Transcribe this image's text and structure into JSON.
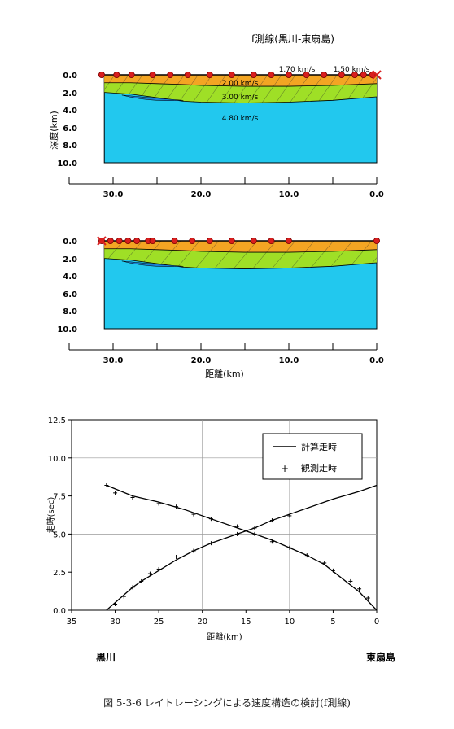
{
  "section1": {
    "title": "f測線(黒川-東扇島)",
    "ylabel": "深度(km)",
    "velocity_labels": [
      "1.70 km/s",
      "1.50 km/s",
      "2.00 km/s",
      "3.00 km/s",
      "4.80 km/s"
    ],
    "x_ticks": [
      "30.0",
      "20.0",
      "10.0",
      "0.0"
    ],
    "y_ticks": [
      "0.0",
      "2.0",
      "4.0",
      "6.0",
      "8.0",
      "10.0"
    ]
  },
  "section2": {
    "xlabel": "距離(km)",
    "x_ticks": [
      "30.0",
      "20.0",
      "10.0",
      "0.0"
    ],
    "y_ticks": [
      "0.0",
      "2.0",
      "4.0",
      "6.0",
      "8.0",
      "10.0"
    ]
  },
  "colors": {
    "layer_orange": "#f3a523",
    "layer_green": "#9fdf26",
    "layer_cyan": "#22c8ee",
    "marker": "#d81e1e"
  },
  "chart_data": [
    {
      "type": "area",
      "name_ref": "section1",
      "xlim": [
        35,
        0
      ],
      "ylim": [
        0,
        10
      ],
      "layers": [
        {
          "velocity": "1.70 km/s",
          "top_km": 0.0
        },
        {
          "velocity": "2.00 km/s",
          "top_km": 0.9
        },
        {
          "velocity": "3.00 km/s",
          "top_km": 1.9
        },
        {
          "velocity": "4.80 km/s",
          "top_km": 2.5
        }
      ],
      "interface_x": [
        31,
        28,
        25,
        22,
        20,
        15,
        10,
        5,
        0
      ],
      "interface_1_depth": [
        0.9,
        0.9,
        1.0,
        1.1,
        1.2,
        1.3,
        1.3,
        1.2,
        1.0
      ],
      "interface_2_depth": [
        2.0,
        2.2,
        2.6,
        3.0,
        3.1,
        3.2,
        3.1,
        2.9,
        2.5
      ],
      "shots_x": [
        31.3,
        29.6,
        27.9,
        25.5,
        23.5,
        21.5,
        19.0,
        16.5,
        14.0,
        12.0,
        10.0,
        8.0,
        6.0,
        4.0,
        2.5,
        1.5,
        0.5
      ],
      "receiver_x": 0.0
    },
    {
      "type": "area",
      "name_ref": "section2",
      "xlim": [
        35,
        0
      ],
      "ylim": [
        0,
        10
      ],
      "shots_x": [
        31.3,
        30.3,
        29.3,
        28.3,
        27.3,
        26.0,
        25.5,
        23.0,
        21.0,
        19.0,
        16.5,
        14.0,
        12.0,
        10.0,
        0.0
      ],
      "receiver_x": 31.3
    },
    {
      "type": "line",
      "xlabel": "距離(km)",
      "ylabel": "走時(sec)",
      "xlim": [
        35,
        0
      ],
      "ylim": [
        0,
        12.5
      ],
      "x_ticks": [
        "35",
        "30",
        "25",
        "20",
        "15",
        "10",
        "5",
        "0"
      ],
      "y_ticks": [
        "0.0",
        "2.5",
        "5.0",
        "7.5",
        "10.0",
        "12.5"
      ],
      "legend": {
        "calc_label": "計算走時",
        "obs_label": "観測走時",
        "calc_symbol": "—",
        "obs_symbol": "+",
        "position": "top-right"
      },
      "left_label": "黒川",
      "right_label": "東扇島",
      "series": [
        {
          "name": "計算走時",
          "x": [
            31,
            28,
            25,
            22,
            19,
            16,
            14,
            12,
            10,
            8,
            6,
            4,
            2,
            0
          ],
          "y": [
            8.2,
            7.5,
            7.1,
            6.6,
            6.0,
            5.4,
            5.0,
            4.6,
            4.1,
            3.6,
            3.0,
            2.1,
            1.2,
            0.0
          ]
        },
        {
          "name": "計算走時",
          "x": [
            31,
            30,
            29,
            28,
            27,
            25,
            23,
            21,
            19,
            16,
            14,
            12,
            10,
            8,
            5,
            2,
            0
          ],
          "y": [
            0.0,
            0.5,
            1.0,
            1.5,
            1.9,
            2.6,
            3.3,
            3.9,
            4.4,
            5.0,
            5.4,
            5.9,
            6.3,
            6.7,
            7.3,
            7.8,
            8.2
          ]
        },
        {
          "name": "観測走時",
          "x": [
            31,
            30,
            28,
            25,
            23,
            21,
            19,
            16,
            14,
            12,
            10,
            8,
            6,
            5,
            3,
            2,
            1
          ],
          "y": [
            8.2,
            7.7,
            7.4,
            7.0,
            6.8,
            6.3,
            6.0,
            5.5,
            5.0,
            4.5,
            4.1,
            3.6,
            3.1,
            2.6,
            1.9,
            1.4,
            0.8
          ]
        },
        {
          "name": "観測走時",
          "x": [
            30,
            29,
            28,
            27,
            26,
            25,
            23,
            21,
            19,
            16,
            14,
            12,
            10
          ],
          "y": [
            0.4,
            0.9,
            1.5,
            1.9,
            2.4,
            2.7,
            3.5,
            3.9,
            4.4,
            5.0,
            5.4,
            5.9,
            6.2
          ]
        }
      ]
    }
  ],
  "caption": "図 5-3-6 レイトレーシングによる速度構造の検討(f測線)"
}
